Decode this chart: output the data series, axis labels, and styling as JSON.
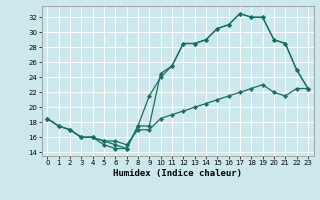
{
  "title": "",
  "xlabel": "Humidex (Indice chaleur)",
  "bg_color": "#cce8ec",
  "grid_color": "#ffffff",
  "line_color": "#1a6e64",
  "xlim": [
    -0.5,
    23.5
  ],
  "ylim": [
    13.5,
    33.5
  ],
  "xticks": [
    0,
    1,
    2,
    3,
    4,
    5,
    6,
    7,
    8,
    9,
    10,
    11,
    12,
    13,
    14,
    15,
    16,
    17,
    18,
    19,
    20,
    21,
    22,
    23
  ],
  "yticks": [
    14,
    16,
    18,
    20,
    22,
    24,
    26,
    28,
    30,
    32
  ],
  "line1_x": [
    0,
    1,
    2,
    3,
    4,
    5,
    6,
    7,
    8,
    9,
    10,
    11,
    12,
    13,
    14,
    15,
    16,
    17,
    18,
    19,
    20,
    21,
    22,
    23
  ],
  "line1_y": [
    18.5,
    17.5,
    17.0,
    16.0,
    16.0,
    15.0,
    14.5,
    14.5,
    17.5,
    21.5,
    24.0,
    25.5,
    28.5,
    28.5,
    29.0,
    30.5,
    31.0,
    32.5,
    32.0,
    32.0,
    29.0,
    28.5,
    25.0,
    22.5
  ],
  "line2_x": [
    0,
    1,
    2,
    3,
    4,
    5,
    6,
    7,
    8,
    9,
    10,
    11,
    12,
    13,
    14,
    15,
    16,
    17,
    18,
    19,
    20,
    21,
    22,
    23
  ],
  "line2_y": [
    18.5,
    17.5,
    17.0,
    16.0,
    16.0,
    15.5,
    15.0,
    14.5,
    17.5,
    17.5,
    24.5,
    25.5,
    28.5,
    28.5,
    29.0,
    30.5,
    31.0,
    32.5,
    32.0,
    32.0,
    29.0,
    28.5,
    25.0,
    22.5
  ],
  "line3_x": [
    0,
    1,
    2,
    3,
    4,
    5,
    6,
    7,
    8,
    9,
    10,
    11,
    12,
    13,
    14,
    15,
    16,
    17,
    18,
    19,
    20,
    21,
    22,
    23
  ],
  "line3_y": [
    18.5,
    17.5,
    17.0,
    16.0,
    16.0,
    15.5,
    15.5,
    15.0,
    17.0,
    17.0,
    18.5,
    19.0,
    19.5,
    20.0,
    20.5,
    21.0,
    21.5,
    22.0,
    22.5,
    23.0,
    22.0,
    21.5,
    22.5,
    22.5
  ]
}
